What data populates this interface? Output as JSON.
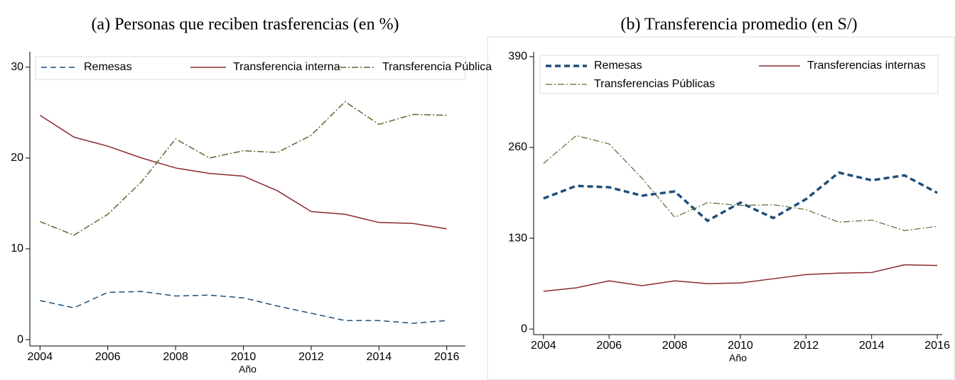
{
  "chart_data": [
    {
      "type": "line",
      "title": "(a) Personas que reciben trasferencias (en %)",
      "xlabel": "Año",
      "x": [
        2004,
        2005,
        2006,
        2007,
        2008,
        2009,
        2010,
        2011,
        2012,
        2013,
        2014,
        2015,
        2016
      ],
      "xlim": [
        2003.7,
        2016.55
      ],
      "xticks": [
        2004,
        2006,
        2008,
        2010,
        2012,
        2014,
        2016
      ],
      "ylim": [
        -0.7,
        31.7
      ],
      "yticks": [
        0,
        10,
        20,
        30
      ],
      "legend": "top",
      "legend_columns": 3,
      "series": [
        {
          "name": "Remesas",
          "color": "#1f4e79",
          "dash": "dashed",
          "width": 1.5,
          "values": [
            4.3,
            3.5,
            5.2,
            5.3,
            4.8,
            4.9,
            4.6,
            3.7,
            2.9,
            2.1,
            2.1,
            1.8,
            2.1
          ]
        },
        {
          "name": "Transferencia interna",
          "color": "#8b2a2e",
          "dash": "solid",
          "width": 1.5,
          "values": [
            24.7,
            22.3,
            21.3,
            20.0,
            18.9,
            18.3,
            18.0,
            16.4,
            14.1,
            13.8,
            12.9,
            12.8,
            12.2
          ]
        },
        {
          "name": "Transferencia Pública",
          "color": "#556b2f",
          "dash": "dashdot",
          "width": 1.5,
          "values": [
            13.0,
            11.5,
            13.8,
            17.4,
            22.1,
            20.0,
            20.8,
            20.6,
            22.5,
            26.2,
            23.7,
            24.8,
            24.7
          ]
        }
      ]
    },
    {
      "type": "line",
      "title": "(b) Transferencia promedio (en S/)",
      "xlabel": "Año",
      "x": [
        2004,
        2005,
        2006,
        2007,
        2008,
        2009,
        2010,
        2011,
        2012,
        2013,
        2014,
        2015,
        2016
      ],
      "xlim": [
        2003.7,
        2016.15
      ],
      "xticks": [
        2004,
        2006,
        2008,
        2010,
        2012,
        2014,
        2016
      ],
      "ylim": [
        -8,
        397
      ],
      "yticks": [
        0,
        130,
        260,
        390
      ],
      "legend": "top",
      "legend_columns": 2,
      "series": [
        {
          "name": "Remesas",
          "color": "#1f4e79",
          "dash": "dashed",
          "width": 3.5,
          "values": [
            187,
            205,
            203,
            191,
            197,
            155,
            181,
            159,
            186,
            224,
            213,
            220,
            195
          ]
        },
        {
          "name": "Transferencias internas",
          "color": "#8b2a2e",
          "dash": "solid",
          "width": 1.5,
          "values": [
            54,
            59,
            69,
            62,
            69,
            65,
            66,
            72,
            78,
            80,
            81,
            92,
            91
          ]
        },
        {
          "name": "Transferencias Públicas",
          "color": "#556b2f",
          "dash": "dashdot",
          "width": 1.2,
          "values": [
            237,
            277,
            265,
            216,
            160,
            181,
            177,
            178,
            171,
            153,
            156,
            141,
            147
          ]
        }
      ]
    }
  ]
}
